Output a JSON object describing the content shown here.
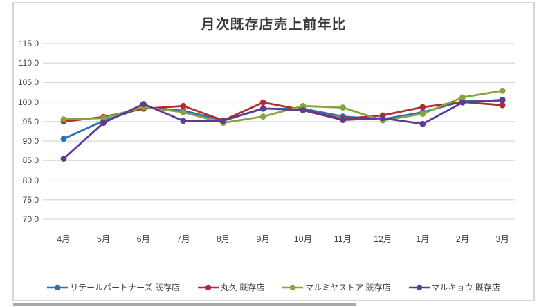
{
  "chart_data": {
    "type": "line",
    "title": "月次既存店売上前年比",
    "categories": [
      "4月",
      "5月",
      "6月",
      "7月",
      "8月",
      "9月",
      "10月",
      "11月",
      "12月",
      "1月",
      "2月",
      "3月"
    ],
    "series": [
      {
        "name": "リテールパートナーズ 既存店",
        "color": "#2e6fad",
        "values": [
          90.6,
          95.2,
          98.6,
          97.8,
          95.3,
          98.3,
          98.3,
          96.3,
          95.6,
          97.4,
          100.2,
          100.4
        ]
      },
      {
        "name": "丸久 既存店",
        "color": "#b02c30",
        "values": [
          95.0,
          96.2,
          98.3,
          99.0,
          95.3,
          99.9,
          98.0,
          95.7,
          96.6,
          98.7,
          100.0,
          99.2
        ]
      },
      {
        "name": "マルミヤストア 既存店",
        "color": "#84a43f",
        "values": [
          95.6,
          95.9,
          98.7,
          97.4,
          94.7,
          96.3,
          99.0,
          98.6,
          95.3,
          97.0,
          101.2,
          102.9
        ]
      },
      {
        "name": "マルキョウ 既存店",
        "color": "#5d3c94",
        "values": [
          85.5,
          94.7,
          99.5,
          95.2,
          95.2,
          98.4,
          97.9,
          95.4,
          95.9,
          94.4,
          99.9,
          100.6
        ]
      }
    ],
    "ylim": [
      70,
      115
    ],
    "ytick_step": 5,
    "yticks": [
      "115.0",
      "110.0",
      "105.0",
      "100.0",
      "95.0",
      "90.0",
      "85.0",
      "80.0",
      "75.0",
      "70.0"
    ],
    "xlabel": "",
    "ylabel": "",
    "grid": true,
    "legend_position": "bottom",
    "gridline_color": "#d9d9d9",
    "axis_text_color": "#424245",
    "title_color": "#3a3a3a"
  }
}
